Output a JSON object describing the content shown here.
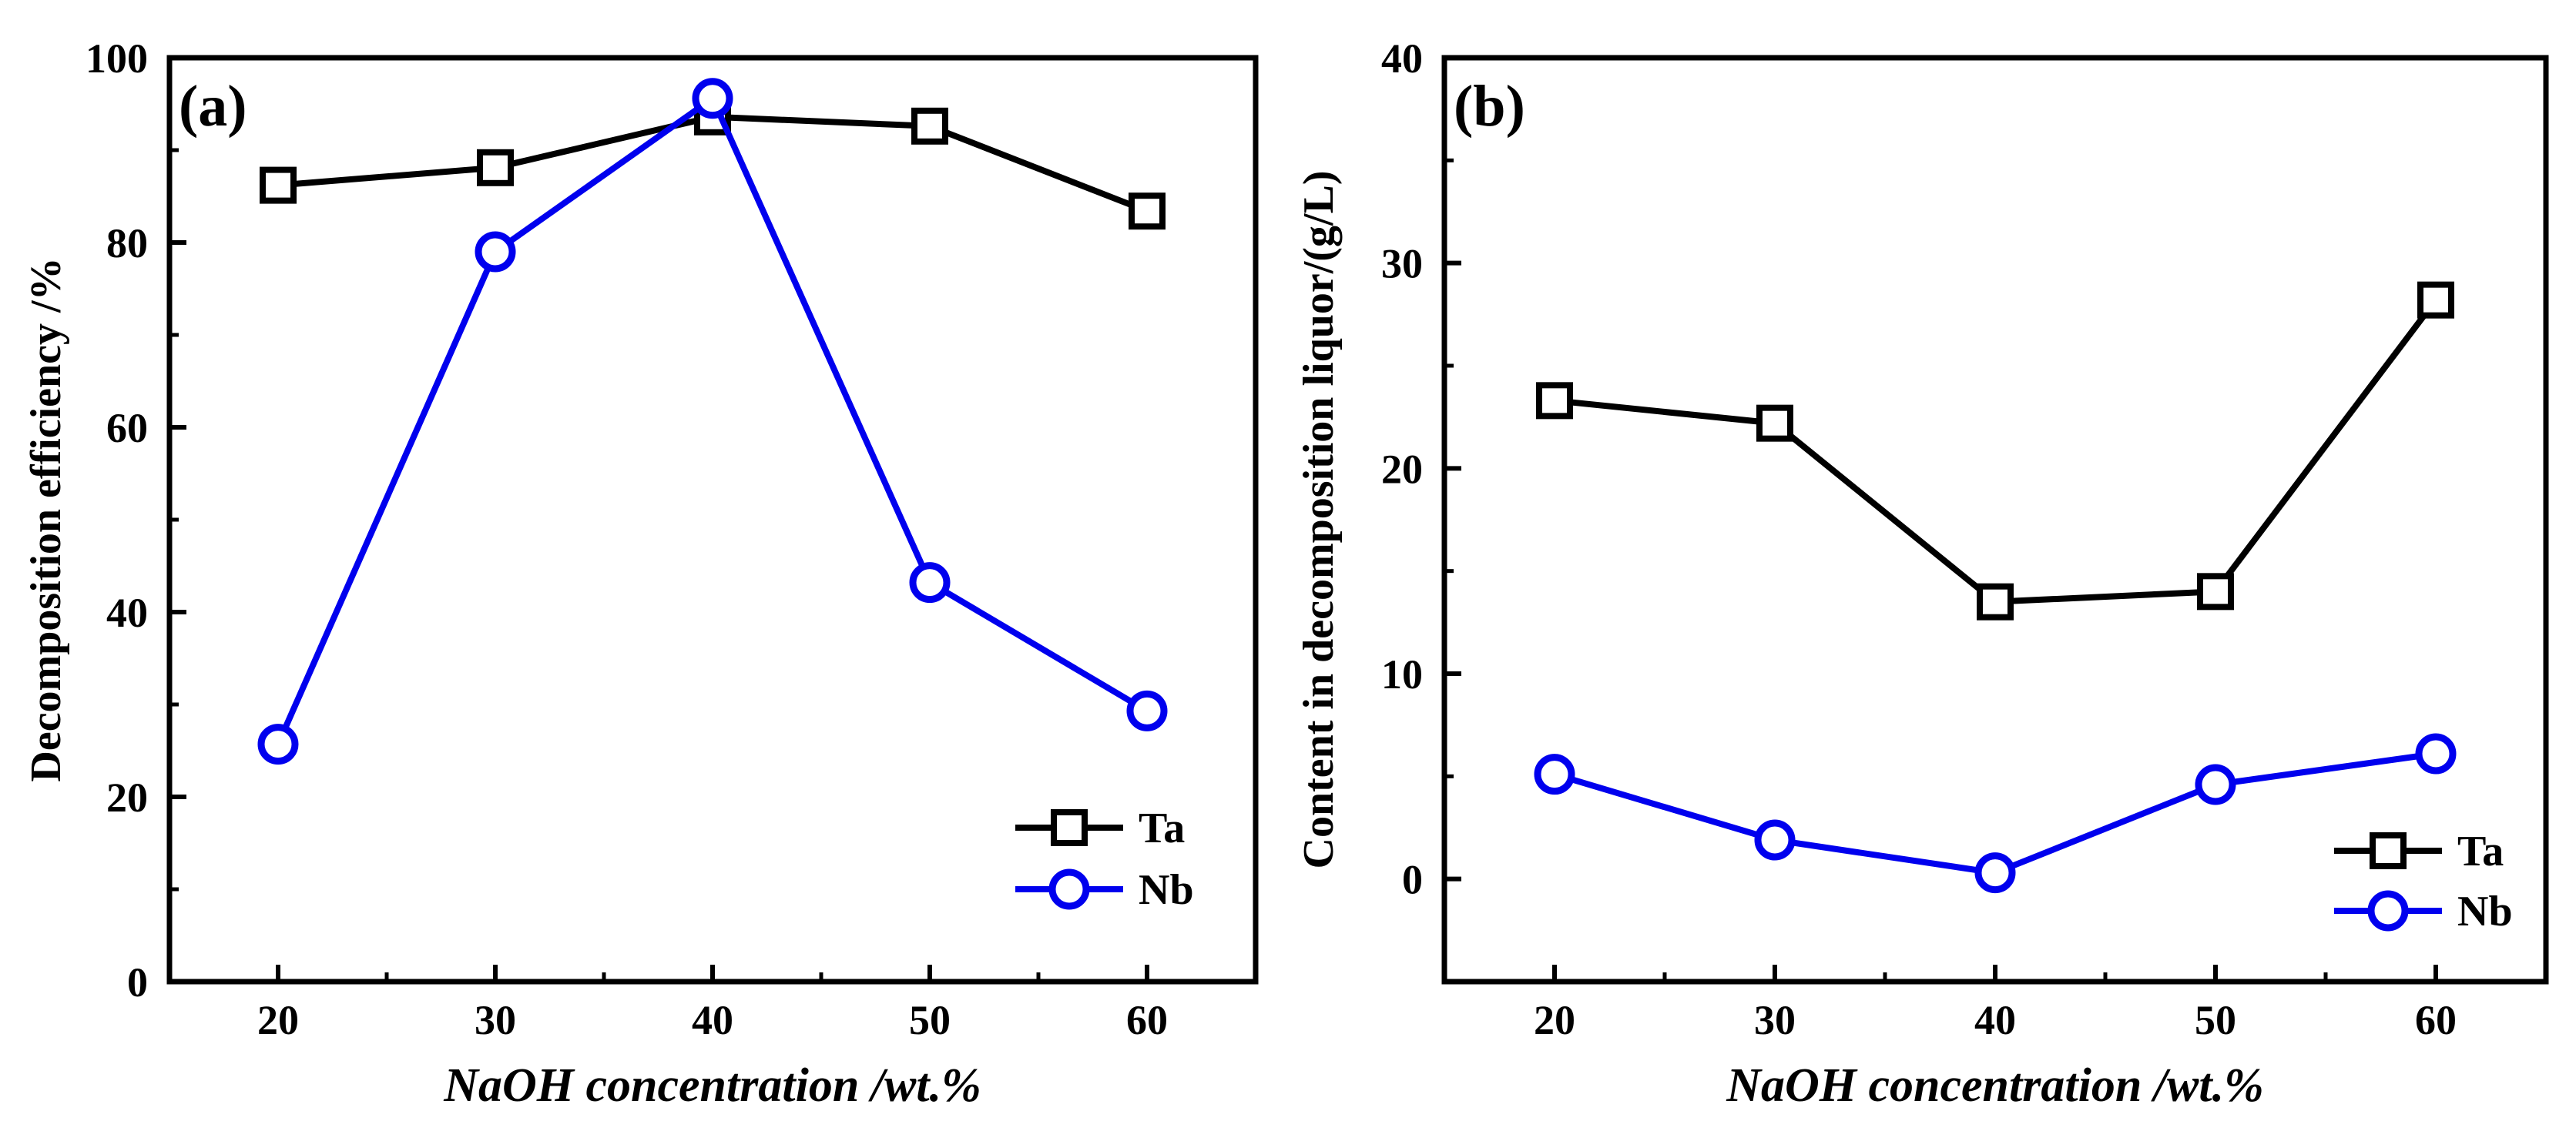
{
  "chart_data": [
    {
      "type": "line",
      "panel_label": "(a)",
      "xlabel": "NaOH concentration /wt.%",
      "ylabel": "Decomposition efficiency /%",
      "xlim": [
        15,
        65
      ],
      "ylim": [
        0,
        100
      ],
      "xticks": [
        20,
        30,
        40,
        50,
        60
      ],
      "yticks": [
        0,
        20,
        40,
        60,
        80,
        100
      ],
      "grid": false,
      "legend_position": "bottom-right",
      "x": [
        20,
        30,
        40,
        50,
        60
      ],
      "series": [
        {
          "name": "Ta",
          "marker": "square",
          "color": "#000000",
          "values": [
            86.2,
            88.1,
            93.6,
            92.6,
            83.4
          ]
        },
        {
          "name": "Nb",
          "marker": "circle",
          "color": "#0000ee",
          "values": [
            25.7,
            79.0,
            95.6,
            43.2,
            29.3
          ]
        }
      ]
    },
    {
      "type": "line",
      "panel_label": "(b)",
      "xlabel": "NaOH concentration /wt.%",
      "ylabel": "Content in decomposition liquor/(g/L)",
      "xlim": [
        15,
        65
      ],
      "ylim": [
        -5,
        40
      ],
      "xticks": [
        20,
        30,
        40,
        50,
        60
      ],
      "yticks": [
        0,
        10,
        20,
        30,
        40
      ],
      "grid": false,
      "legend_position": "bottom-right",
      "x": [
        20,
        30,
        40,
        50,
        60
      ],
      "series": [
        {
          "name": "Ta",
          "marker": "square",
          "color": "#000000",
          "values": [
            23.3,
            22.2,
            13.5,
            14.0,
            28.2
          ]
        },
        {
          "name": "Nb",
          "marker": "circle",
          "color": "#0000ee",
          "values": [
            5.1,
            1.9,
            0.3,
            4.6,
            6.1
          ]
        }
      ]
    }
  ]
}
